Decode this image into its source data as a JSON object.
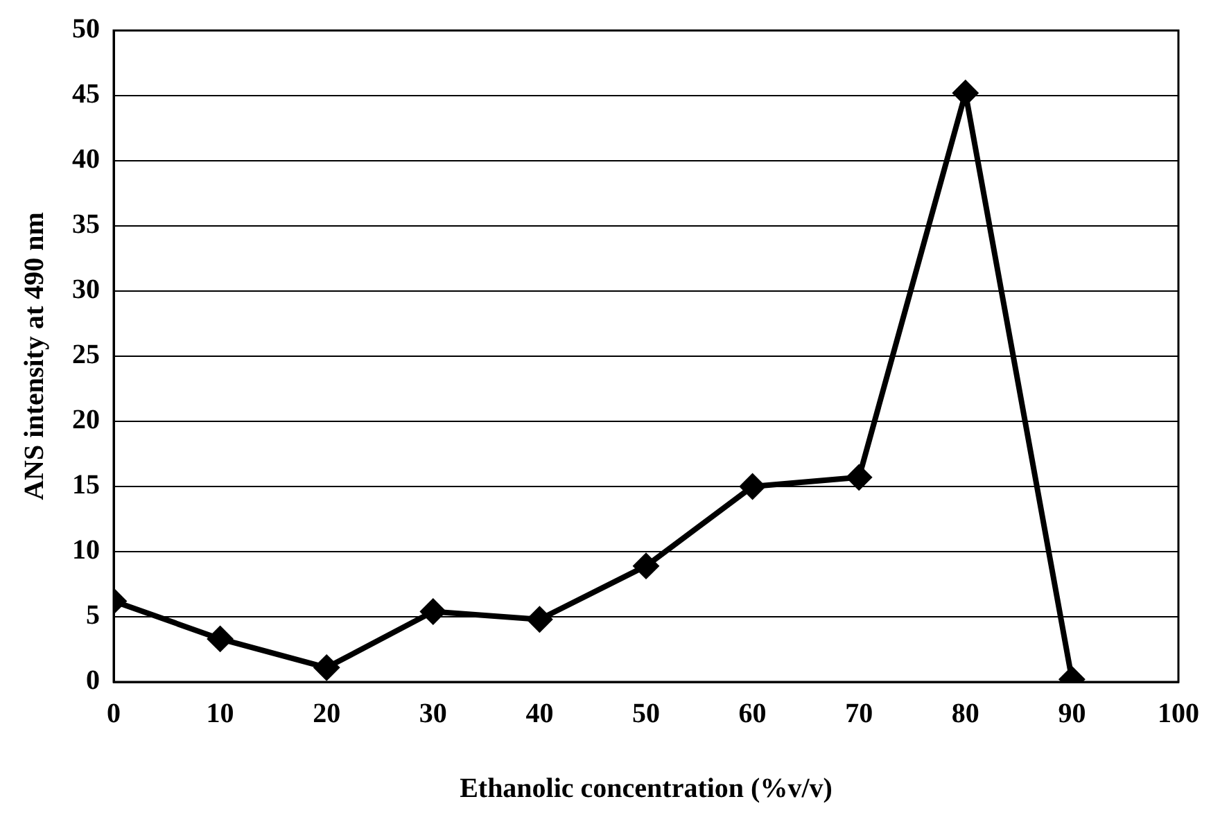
{
  "chart_data": {
    "type": "line",
    "xlabel": "Ethanolic concentration (%v/v)",
    "ylabel": "ANS intensity at 490 nm",
    "x": [
      0,
      10,
      20,
      30,
      40,
      50,
      60,
      70,
      80,
      90
    ],
    "series": [
      {
        "color": "#000000",
        "values": [
          6.2,
          3.3,
          1.1,
          5.4,
          4.8,
          8.9,
          15,
          15.7,
          45.2,
          0.2
        ]
      }
    ],
    "xlim": [
      0,
      100
    ],
    "xticks": [
      0,
      10,
      20,
      30,
      40,
      50,
      60,
      70,
      80,
      90,
      100
    ],
    "ylim": [
      0,
      50
    ],
    "yticks": [
      0,
      5,
      10,
      15,
      20,
      25,
      30,
      35,
      40,
      45,
      50
    ],
    "grid": "y",
    "legend": false,
    "marker": "diamond",
    "line_style": "solid"
  }
}
